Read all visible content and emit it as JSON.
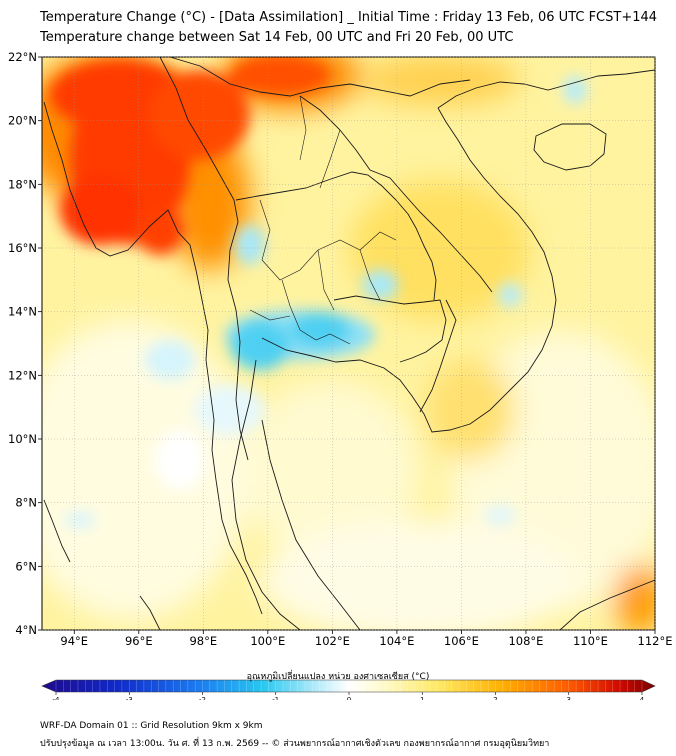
{
  "title_line1": "Temperature Change (°C) - [Data Assimilation] _ Initial Time : Friday 13 Feb, 06 UTC FCST+144",
  "title_line2": "Temperature change between Sat 14 Feb, 00 UTC and Fri 20 Feb, 00 UTC",
  "map": {
    "lon_range": [
      93,
      112
    ],
    "lat_range": [
      4,
      22
    ],
    "x_ticks": [
      "94°E",
      "96°E",
      "98°E",
      "100°E",
      "102°E",
      "104°E",
      "106°E",
      "108°E",
      "110°E",
      "112°E"
    ],
    "x_tick_values": [
      94,
      96,
      98,
      100,
      102,
      104,
      106,
      108,
      110,
      112
    ],
    "y_ticks": [
      "4°N",
      "6°N",
      "8°N",
      "10°N",
      "12°N",
      "14°N",
      "16°N",
      "18°N",
      "20°N",
      "22°N"
    ],
    "y_tick_values": [
      4,
      6,
      8,
      10,
      12,
      14,
      16,
      18,
      20,
      22
    ]
  },
  "colorbar": {
    "label": "อุณหภูมิเปลี่ยนแปลง หน่วย องศาเซลเซียส (°C)",
    "ticks": [
      "-4",
      "-3",
      "-2",
      "-1",
      "0",
      "1",
      "2",
      "3",
      "4"
    ],
    "tick_values": [
      -4,
      -3,
      -2,
      -1,
      0,
      1,
      2,
      3,
      4
    ],
    "range": [
      -4,
      4
    ]
  },
  "footer_line1": "WRF-DA Domain 01 :: Grid Resolution 9km x 9km",
  "footer_line2": "ปรับปรุงข้อมูล ณ เวลา 13:00น. วัน ศ. ที่ 13 ก.พ. 2569 -- © ส่วนพยากรณ์อากาศเชิงตัวเลข กองพยากรณ์อากาศ กรมอุตุนิยมวิทยา",
  "colors": {
    "neg_strong": "#1e0a8c",
    "neg_mid": "#28c8f0",
    "neutral": "#ffffff",
    "pos_light": "#fff7b0",
    "pos_mid": "#ffb000",
    "pos_strong": "#e01000",
    "pos_max": "#7a0000"
  }
}
